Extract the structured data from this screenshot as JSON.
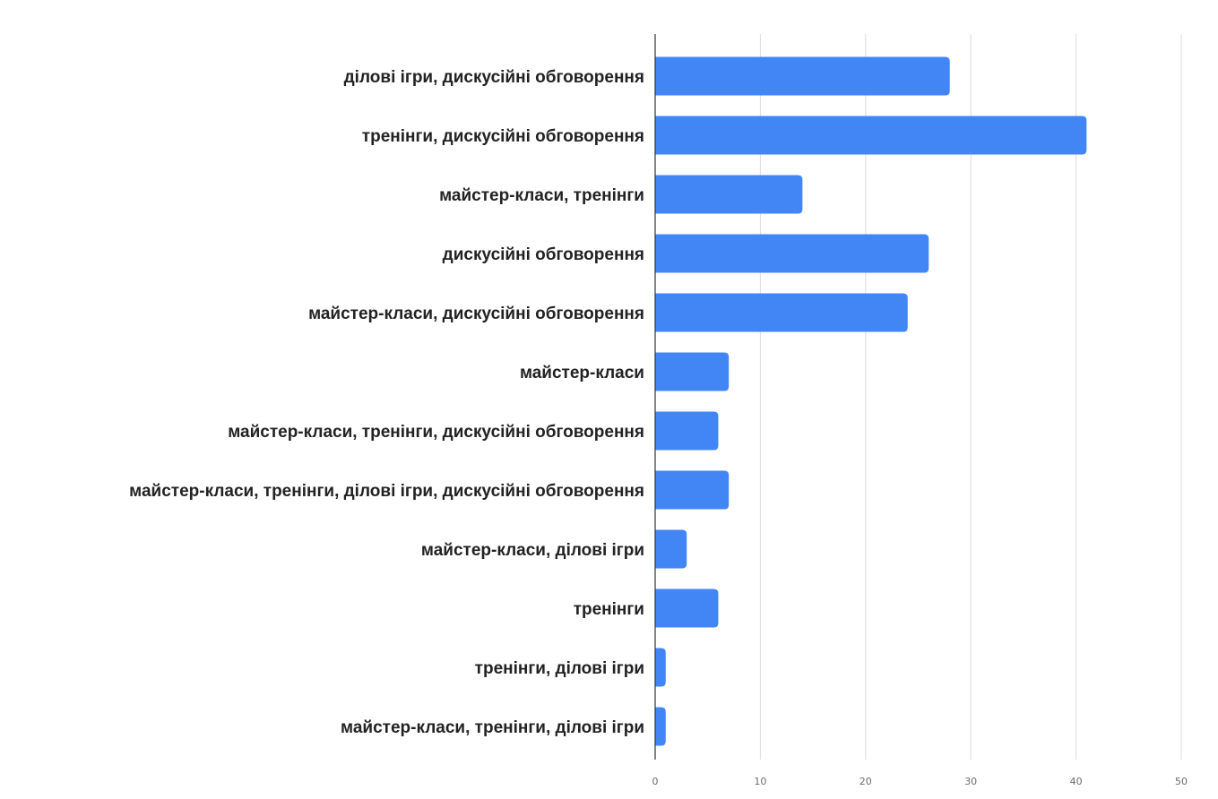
{
  "chart_data": {
    "type": "bar",
    "orientation": "horizontal",
    "title": "",
    "xlabel": "",
    "ylabel": "",
    "categories": [
      "ділові ігри, дискусійні обговорення",
      "тренінги, дискусійні обговорення",
      "майстер-класи, тренінги",
      "дискусійні обговорення",
      "майстер-класи, дискусійні обговорення",
      "майстер-класи",
      "майстер-класи, тренінги, дискусійні обговорення",
      "майстер-класи, тренінги, ділові ігри, дискусійні обговорення",
      "майстер-класи, ділові ігри",
      "тренінги",
      "тренінги, ділові ігри",
      "майстер-класи, тренінги, ділові ігри"
    ],
    "values": [
      28,
      41,
      14,
      26,
      24,
      7,
      6,
      7,
      3,
      6,
      1,
      1
    ],
    "xlim": [
      0,
      50
    ],
    "x_ticks": [
      "0",
      "10",
      "20",
      "30",
      "40",
      "50"
    ],
    "grid": true,
    "legend": "none",
    "bar_color": "#4285f4"
  }
}
